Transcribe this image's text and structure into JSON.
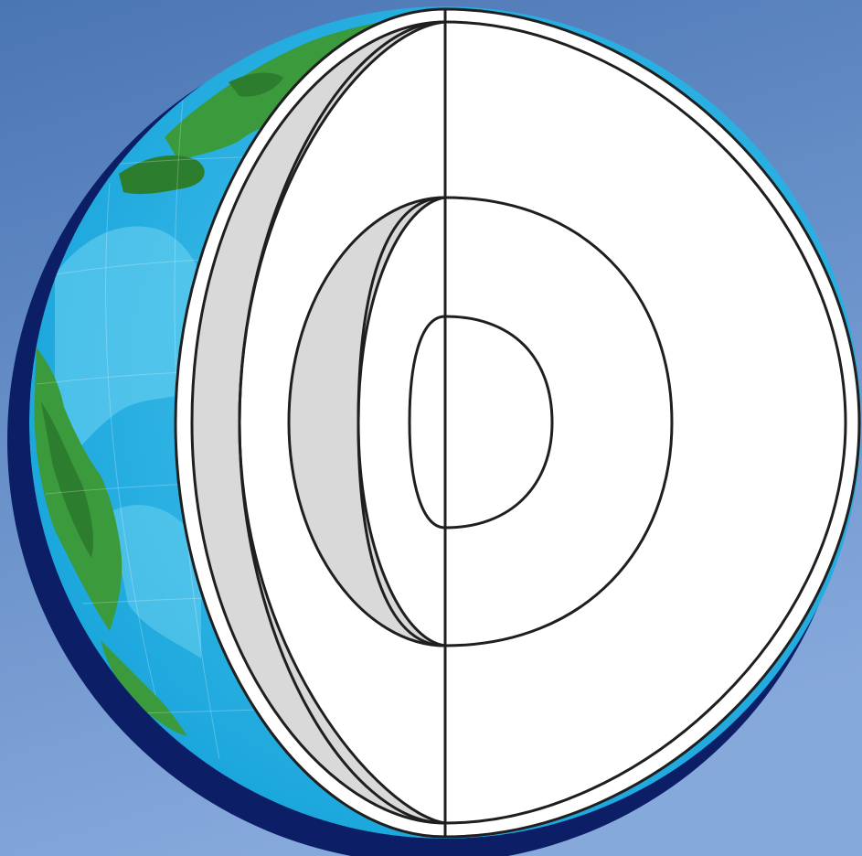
{
  "diagram": {
    "subject": "earth-interior-cutaway",
    "labels": [],
    "layers": [
      {
        "name": "crust"
      },
      {
        "name": "mantle"
      },
      {
        "name": "outer-core"
      },
      {
        "name": "inner-core"
      }
    ]
  },
  "colors": {
    "background_top": "#4a76b4",
    "background_bottom": "#86a9dc",
    "ocean": "#1ab2ea",
    "ocean_light": "#52c8ef",
    "land": "#3a9a3c",
    "land_dark": "#2c7d2e",
    "shadow": "#0c1e66",
    "cut_face": "#ffffff",
    "inner_wall": "#d9d9d9",
    "outline": "#1f1f1f"
  }
}
